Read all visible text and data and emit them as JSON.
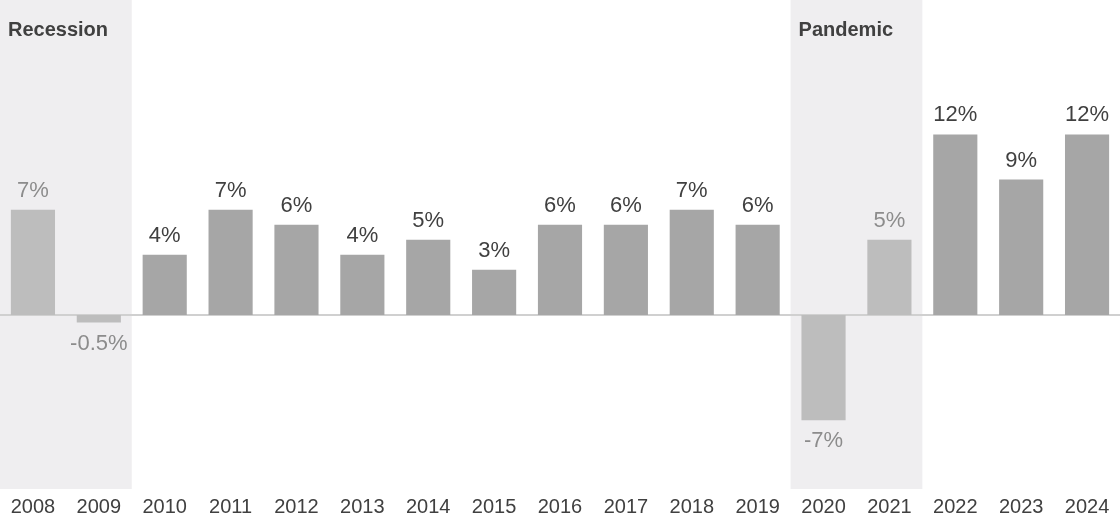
{
  "chart_data": {
    "type": "bar",
    "categories": [
      "2008",
      "2009",
      "2010",
      "2011",
      "2012",
      "2013",
      "2014",
      "2015",
      "2016",
      "2017",
      "2018",
      "2019",
      "2020",
      "2021",
      "2022",
      "2023",
      "2024"
    ],
    "values": [
      7,
      -0.5,
      4,
      7,
      6,
      4,
      5,
      3,
      6,
      6,
      7,
      6,
      -7,
      5,
      12,
      9,
      12
    ],
    "colors": [
      "#bdbdbd",
      "#bdbdbd",
      "#a6a6a6",
      "#a6a6a6",
      "#a6a6a6",
      "#a6a6a6",
      "#a6a6a6",
      "#a6a6a6",
      "#a6a6a6",
      "#a6a6a6",
      "#a6a6a6",
      "#a6a6a6",
      "#bdbdbd",
      "#bdbdbd",
      "#a6a6a6",
      "#a6a6a6",
      "#a6a6a6"
    ],
    "value_labels": [
      "7%",
      "-0.5%",
      "4%",
      "7%",
      "6%",
      "4%",
      "5%",
      "3%",
      "6%",
      "6%",
      "7%",
      "6%",
      "-7%",
      "5%",
      "12%",
      "9%",
      "12%"
    ],
    "bands": [
      {
        "axis": "x",
        "from": "2008",
        "to": "2009",
        "label": "Recession",
        "color": "#efeef0"
      },
      {
        "axis": "x",
        "from": "2020",
        "to": "2021",
        "label": "Pandemic",
        "color": "#efeef0"
      }
    ],
    "grid": false,
    "legend": false
  }
}
